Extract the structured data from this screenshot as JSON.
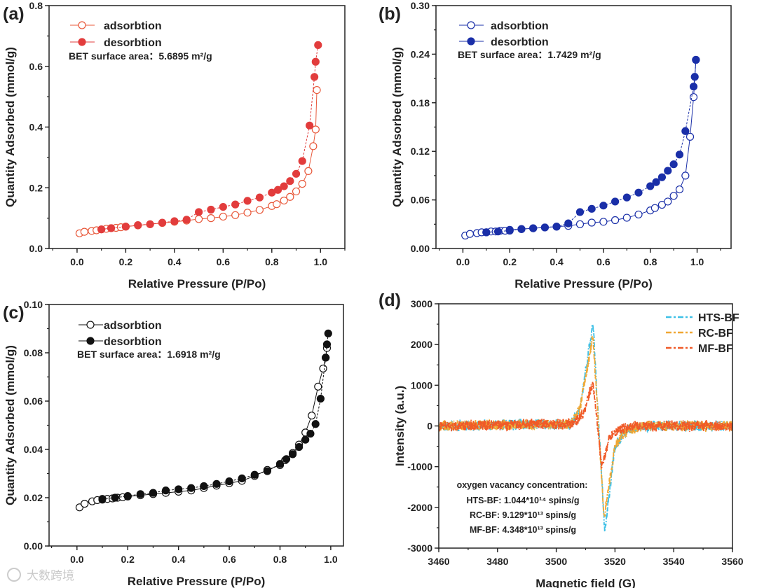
{
  "watermark": "大数跨境",
  "chart_data": [
    {
      "panel_label": "(a)",
      "type": "scatter",
      "xlabel": "Relative Pressure (P/Po)",
      "ylabel": "Quantity Adsorbed (mmol/g)",
      "xlim": [
        -0.115,
        1.1
      ],
      "ylim": [
        0,
        0.8
      ],
      "x_ticks": [
        0.0,
        0.2,
        0.4,
        0.6,
        0.8,
        1.0
      ],
      "x_tick_labels": [
        "0.0",
        "0.2",
        "0.4",
        "0.6",
        "0.8",
        "1.0"
      ],
      "y_ticks": [
        0.0,
        0.2,
        0.4,
        0.6,
        0.8
      ],
      "y_tick_labels": [
        "0.0",
        "0.2",
        "0.4",
        "0.6",
        "0.8"
      ],
      "x_minor": 0.1,
      "y_minor": 0.1,
      "annotation": "BET surface area：5.6895 m²/g",
      "legend_position": "top-left",
      "series": [
        {
          "name": "adsorbtion",
          "marker": "open-circle",
          "color": "#e8583a",
          "x": [
            0.01,
            0.03,
            0.06,
            0.08,
            0.1,
            0.12,
            0.14,
            0.16,
            0.18,
            0.2,
            0.25,
            0.3,
            0.35,
            0.4,
            0.45,
            0.5,
            0.55,
            0.6,
            0.65,
            0.7,
            0.75,
            0.8,
            0.82,
            0.85,
            0.875,
            0.9,
            0.925,
            0.95,
            0.97,
            0.98,
            0.985
          ],
          "y": [
            0.05,
            0.055,
            0.058,
            0.06,
            0.063,
            0.065,
            0.067,
            0.068,
            0.07,
            0.072,
            0.076,
            0.08,
            0.084,
            0.088,
            0.092,
            0.097,
            0.1,
            0.105,
            0.11,
            0.118,
            0.127,
            0.14,
            0.146,
            0.158,
            0.17,
            0.188,
            0.213,
            0.255,
            0.337,
            0.392,
            0.522
          ]
        },
        {
          "name": "desorbtion",
          "marker": "filled-circle",
          "color": "#e23c3c",
          "x": [
            0.99,
            0.98,
            0.975,
            0.955,
            0.925,
            0.9,
            0.875,
            0.85,
            0.825,
            0.8,
            0.75,
            0.7,
            0.65,
            0.6,
            0.55,
            0.5,
            0.45,
            0.4,
            0.35,
            0.3,
            0.25,
            0.2,
            0.14,
            0.1
          ],
          "y": [
            0.67,
            0.615,
            0.565,
            0.405,
            0.288,
            0.246,
            0.222,
            0.205,
            0.193,
            0.184,
            0.168,
            0.157,
            0.145,
            0.137,
            0.128,
            0.12,
            0.095,
            0.09,
            0.085,
            0.08,
            0.077,
            0.072,
            0.067,
            0.063
          ]
        }
      ]
    },
    {
      "panel_label": "(b)",
      "type": "scatter",
      "xlabel": "Relative Pressure (P/Po)",
      "ylabel": "Quantity Adsorbed (mmol/g)",
      "xlim": [
        -0.115,
        1.145
      ],
      "ylim": [
        0,
        0.3
      ],
      "x_ticks": [
        0.0,
        0.2,
        0.4,
        0.6,
        0.8,
        1.0
      ],
      "x_tick_labels": [
        "0.0",
        "0.2",
        "0.4",
        "0.6",
        "0.8",
        "1.0"
      ],
      "y_ticks": [
        0.0,
        0.06,
        0.12,
        0.18,
        0.24,
        0.3
      ],
      "y_tick_labels": [
        "0.00",
        "0.06",
        "0.12",
        "0.18",
        "0.24",
        "0.30"
      ],
      "x_minor": 0.1,
      "y_minor": 0.03,
      "annotation": "BET surface area：1.7429 m²/g",
      "legend_position": "top-left",
      "series": [
        {
          "name": "adsorbtion",
          "marker": "open-circle",
          "color": "#1a2fa8",
          "x": [
            0.01,
            0.03,
            0.06,
            0.08,
            0.1,
            0.12,
            0.14,
            0.16,
            0.18,
            0.2,
            0.25,
            0.3,
            0.35,
            0.4,
            0.45,
            0.5,
            0.55,
            0.6,
            0.65,
            0.7,
            0.75,
            0.8,
            0.82,
            0.85,
            0.875,
            0.9,
            0.925,
            0.95,
            0.97,
            0.985,
            0.995
          ],
          "y": [
            0.016,
            0.018,
            0.019,
            0.02,
            0.02,
            0.021,
            0.021,
            0.022,
            0.022,
            0.023,
            0.024,
            0.025,
            0.026,
            0.027,
            0.028,
            0.03,
            0.032,
            0.033,
            0.035,
            0.038,
            0.042,
            0.047,
            0.05,
            0.054,
            0.058,
            0.065,
            0.073,
            0.09,
            0.138,
            0.187,
            0.233
          ]
        },
        {
          "name": "desorbtion",
          "marker": "filled-circle",
          "color": "#1a2fa8",
          "x": [
            0.995,
            0.99,
            0.985,
            0.95,
            0.925,
            0.9,
            0.875,
            0.85,
            0.825,
            0.8,
            0.75,
            0.7,
            0.65,
            0.6,
            0.55,
            0.5,
            0.45,
            0.4,
            0.35,
            0.3,
            0.25,
            0.2,
            0.15,
            0.1
          ],
          "y": [
            0.233,
            0.212,
            0.2,
            0.145,
            0.116,
            0.104,
            0.096,
            0.088,
            0.082,
            0.077,
            0.069,
            0.063,
            0.058,
            0.053,
            0.049,
            0.045,
            0.031,
            0.027,
            0.026,
            0.025,
            0.024,
            0.022,
            0.021,
            0.02
          ]
        }
      ]
    },
    {
      "panel_label": "(c)",
      "type": "scatter",
      "xlabel": "Relative Pressure (P/Po)",
      "ylabel": "Quantity Adsorbed (mmol/g)",
      "xlim": [
        -0.11,
        1.05
      ],
      "ylim": [
        0,
        0.1
      ],
      "x_ticks": [
        0.0,
        0.2,
        0.4,
        0.6,
        0.8,
        1.0
      ],
      "x_tick_labels": [
        "0.0",
        "0.2",
        "0.4",
        "0.6",
        "0.8",
        "1.0"
      ],
      "y_ticks": [
        0.0,
        0.02,
        0.04,
        0.06,
        0.08,
        0.1
      ],
      "y_tick_labels": [
        "0.00",
        "0.02",
        "0.04",
        "0.06",
        "0.08",
        "0.10"
      ],
      "x_minor": 0.1,
      "y_minor": 0.01,
      "annotation": "BET surface area：1.6918 m²/g",
      "legend_position": "top-left",
      "series": [
        {
          "name": "adsorbtion",
          "marker": "open-circle",
          "color": "#111111",
          "x": [
            0.01,
            0.03,
            0.06,
            0.08,
            0.1,
            0.12,
            0.14,
            0.16,
            0.18,
            0.2,
            0.25,
            0.3,
            0.35,
            0.4,
            0.45,
            0.5,
            0.55,
            0.6,
            0.65,
            0.7,
            0.75,
            0.8,
            0.82,
            0.85,
            0.875,
            0.9,
            0.925,
            0.95,
            0.97,
            0.98,
            0.985
          ],
          "y": [
            0.016,
            0.0175,
            0.0185,
            0.019,
            0.0192,
            0.0195,
            0.0197,
            0.02,
            0.0202,
            0.0205,
            0.021,
            0.0215,
            0.022,
            0.0225,
            0.023,
            0.024,
            0.025,
            0.026,
            0.027,
            0.029,
            0.0315,
            0.0335,
            0.0355,
            0.0385,
            0.042,
            0.047,
            0.054,
            0.066,
            0.0735,
            0.078,
            0.082
          ]
        },
        {
          "name": "desorbtion",
          "marker": "filled-circle",
          "color": "#111111",
          "x": [
            0.99,
            0.985,
            0.98,
            0.96,
            0.94,
            0.92,
            0.9,
            0.875,
            0.85,
            0.825,
            0.8,
            0.75,
            0.7,
            0.65,
            0.6,
            0.55,
            0.5,
            0.45,
            0.4,
            0.35,
            0.3,
            0.25,
            0.2,
            0.15,
            0.1
          ],
          "y": [
            0.088,
            0.0835,
            0.078,
            0.061,
            0.0505,
            0.0465,
            0.044,
            0.041,
            0.038,
            0.036,
            0.034,
            0.031,
            0.0295,
            0.028,
            0.0268,
            0.0257,
            0.0248,
            0.024,
            0.0235,
            0.023,
            0.022,
            0.0215,
            0.0207,
            0.02,
            0.0195
          ]
        }
      ]
    },
    {
      "panel_label": "(d)",
      "type": "line",
      "xlabel": "Magnetic field (G)",
      "ylabel": "Intensity (a.u.)",
      "xlim": [
        3460,
        3560
      ],
      "ylim": [
        -3000,
        3000
      ],
      "x_ticks": [
        3460,
        3480,
        3500,
        3520,
        3540,
        3560
      ],
      "x_tick_labels": [
        "3460",
        "3480",
        "3500",
        "3520",
        "3540",
        "3560"
      ],
      "y_ticks": [
        -3000,
        -2000,
        -1000,
        0,
        1000,
        2000,
        3000
      ],
      "y_tick_labels": [
        "-3000",
        "-2000",
        "-1000",
        "0",
        "1000",
        "2000",
        "3000"
      ],
      "x_minor": 10,
      "y_minor": 500,
      "legend_position": "top-right",
      "annotation_lines": [
        "oxygen vacancy concentration:",
        "HTS-BF: 1.044*10¹⁴ spins/g",
        "RC-BF:  9.129*10¹³ spins/g",
        "MF-BF:  4.348*10¹³ spins/g"
      ],
      "noise_amplitude": 150,
      "series": [
        {
          "name": "HTS-BF",
          "color": "#3ec0e6",
          "key_points": [
            [
              3460,
              0
            ],
            [
              3505,
              50
            ],
            [
              3508,
              400
            ],
            [
              3512.5,
              2550
            ],
            [
              3516.5,
              -2580
            ],
            [
              3520,
              -500
            ],
            [
              3524,
              -100
            ],
            [
              3530,
              0
            ],
            [
              3560,
              0
            ]
          ]
        },
        {
          "name": "RC-BF",
          "color": "#f0a733",
          "key_points": [
            [
              3460,
              0
            ],
            [
              3505,
              50
            ],
            [
              3508,
              400
            ],
            [
              3512.5,
              2200
            ],
            [
              3516.3,
              -2250
            ],
            [
              3520,
              -500
            ],
            [
              3524,
              -100
            ],
            [
              3530,
              0
            ],
            [
              3560,
              0
            ]
          ]
        },
        {
          "name": "MF-BF",
          "color": "#f05a28",
          "key_points": [
            [
              3460,
              0
            ],
            [
              3506,
              50
            ],
            [
              3509,
              300
            ],
            [
              3512.5,
              1050
            ],
            [
              3515.5,
              -1050
            ],
            [
              3518,
              -300
            ],
            [
              3521,
              -100
            ],
            [
              3526,
              0
            ],
            [
              3560,
              0
            ]
          ]
        }
      ]
    }
  ]
}
